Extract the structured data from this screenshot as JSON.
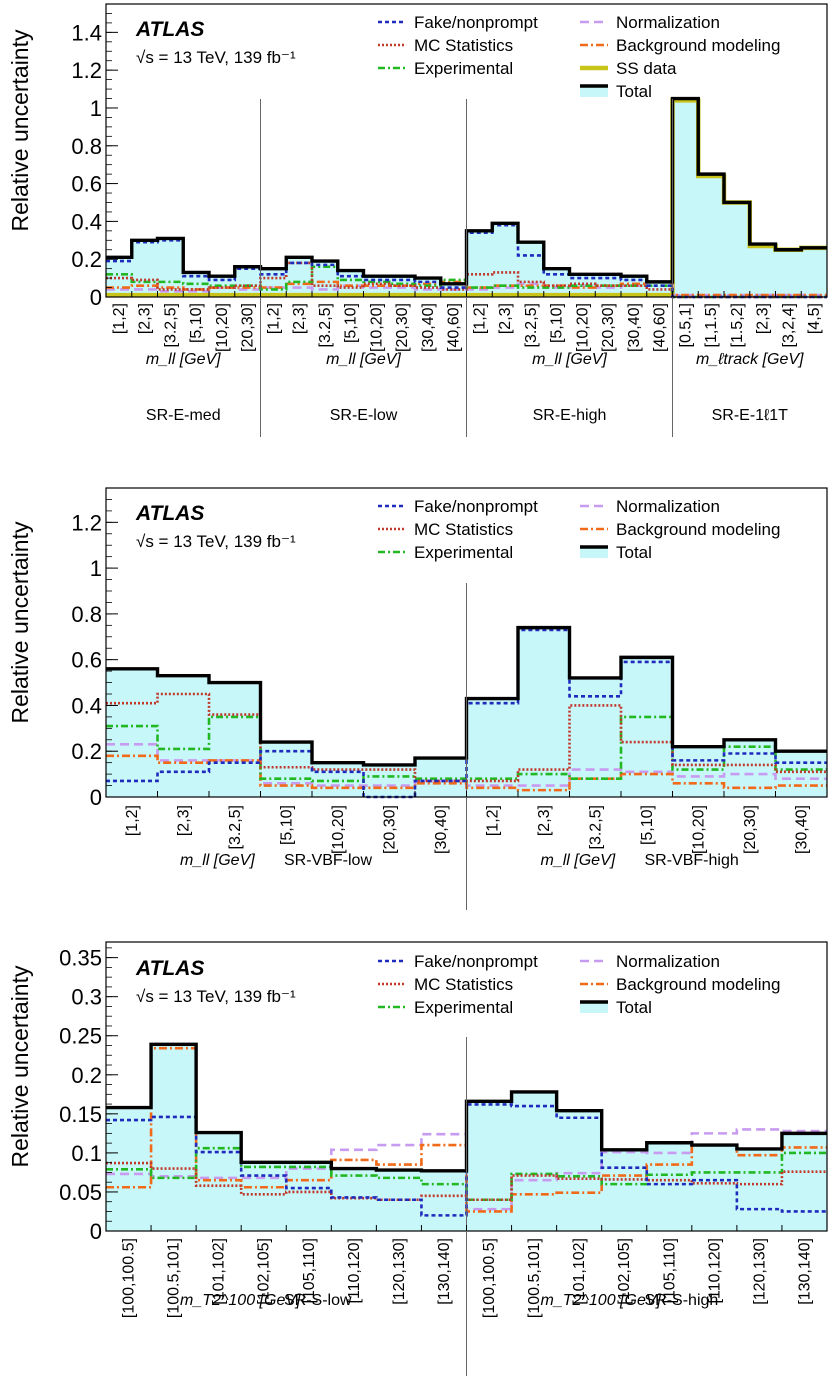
{
  "figure": {
    "ylabel": "Relative uncertainty"
  },
  "legend": {
    "fake": {
      "label": "Fake/nonprompt",
      "color": "#1f2bbd",
      "dash": "4,3"
    },
    "mcstat": {
      "label": "MC Statistics",
      "color": "#c0392b",
      "dash": "2,2"
    },
    "experimental": {
      "label": "Experimental",
      "color": "#22b822",
      "dash": "7,3,2,3"
    },
    "normalization": {
      "label": "Normalization",
      "color": "#c79bf0",
      "dash": "9,5"
    },
    "bkgmodel": {
      "label": "Background modeling",
      "color": "#f06a1a",
      "dash": "8,3,2,3"
    },
    "ssdata": {
      "label": "SS data",
      "color": "#c9c41a"
    },
    "total": {
      "label": "Total",
      "color": "#000000",
      "fill": "#c8f7fa"
    }
  },
  "atlas": {
    "label": "ATLAS",
    "energy": "√s = 13 TeV, 139 fb⁻¹"
  },
  "chart_data": [
    {
      "type": "step",
      "ylim": [
        0,
        1.55
      ],
      "yticks": [
        "0",
        "0.2",
        "0.4",
        "0.6",
        "0.8",
        "1",
        "1.2",
        "1.4"
      ],
      "show_ssdata": true,
      "regions": [
        {
          "name": "SR-E-med",
          "variable": "m_ll [GeV]",
          "categories": [
            "[1,2]",
            "[2,3]",
            "[3.2,5]",
            "[5,10]",
            "[10,20]",
            "[20,30]"
          ]
        },
        {
          "name": "SR-E-low",
          "variable": "m_ll [GeV]",
          "categories": [
            "[1,2]",
            "[2,3]",
            "[3.2,5]",
            "[5,10]",
            "[10,20]",
            "[20,30]",
            "[30,40]",
            "[40,60]"
          ]
        },
        {
          "name": "SR-E-high",
          "variable": "m_ll [GeV]",
          "categories": [
            "[1,2]",
            "[2,3]",
            "[3.2,5]",
            "[5,10]",
            "[10,20]",
            "[20,30]",
            "[30,40]",
            "[40,60]"
          ]
        },
        {
          "name": "SR-E-1ℓ1T",
          "variable": "m_ℓtrack [GeV]",
          "categories": [
            "[0.5,1]",
            "[1,1.5]",
            "[1.5,2]",
            "[2,3]",
            "[3,2,4]",
            "[4,5]"
          ]
        }
      ],
      "series": {
        "total": [
          0.21,
          0.3,
          0.31,
          0.13,
          0.11,
          0.16,
          0.15,
          0.21,
          0.19,
          0.14,
          0.11,
          0.11,
          0.1,
          0.07,
          0.35,
          0.39,
          0.29,
          0.15,
          0.12,
          0.12,
          0.11,
          0.08,
          1.05,
          0.65,
          0.5,
          0.28,
          0.25,
          0.26
        ],
        "fake": [
          0.19,
          0.29,
          0.3,
          0.11,
          0.09,
          0.15,
          0.12,
          0.18,
          0.17,
          0.11,
          0.09,
          0.09,
          0.08,
          0.05,
          0.34,
          0.38,
          0.22,
          0.12,
          0.1,
          0.1,
          0.09,
          0.06,
          0.0,
          0.0,
          0.0,
          0.0,
          0.0,
          0.0
        ],
        "mcstat": [
          0.1,
          0.09,
          0.04,
          0.04,
          0.05,
          0.06,
          0.1,
          0.18,
          0.06,
          0.05,
          0.07,
          0.06,
          0.05,
          0.04,
          0.12,
          0.13,
          0.08,
          0.06,
          0.07,
          0.06,
          0.06,
          0.04,
          0.0,
          0.0,
          0.0,
          0.0,
          0.0,
          0.0
        ],
        "experimental": [
          0.12,
          0.08,
          0.08,
          0.07,
          0.06,
          0.06,
          0.04,
          0.08,
          0.16,
          0.09,
          0.08,
          0.07,
          0.06,
          0.09,
          0.05,
          0.06,
          0.05,
          0.05,
          0.06,
          0.06,
          0.06,
          0.06,
          0.0,
          0.0,
          0.0,
          0.0,
          0.0,
          0.0
        ],
        "normalization": [
          0.04,
          0.04,
          0.03,
          0.03,
          0.05,
          0.04,
          0.05,
          0.05,
          0.04,
          0.06,
          0.05,
          0.05,
          0.04,
          0.04,
          0.04,
          0.05,
          0.07,
          0.05,
          0.06,
          0.05,
          0.06,
          0.08,
          0.01,
          0.01,
          0.01,
          0.01,
          0.01,
          0.01
        ],
        "bkgmodel": [
          0.05,
          0.06,
          0.05,
          0.04,
          0.05,
          0.05,
          0.05,
          0.07,
          0.08,
          0.06,
          0.06,
          0.06,
          0.07,
          0.08,
          0.05,
          0.06,
          0.06,
          0.06,
          0.05,
          0.06,
          0.07,
          0.08,
          0.01,
          0.01,
          0.01,
          0.01,
          0.01,
          0.01
        ],
        "ssdata": [
          0.01,
          0.01,
          0.01,
          0.01,
          0.01,
          0.01,
          0.01,
          0.01,
          0.01,
          0.01,
          0.01,
          0.01,
          0.01,
          0.01,
          0.01,
          0.01,
          0.01,
          0.01,
          0.01,
          0.01,
          0.01,
          0.01,
          1.04,
          0.64,
          0.5,
          0.27,
          0.25,
          0.26
        ]
      }
    },
    {
      "type": "step",
      "ylim": [
        0,
        1.35
      ],
      "yticks": [
        "0",
        "0.2",
        "0.4",
        "0.6",
        "0.8",
        "1",
        "1.2"
      ],
      "show_ssdata": false,
      "regions": [
        {
          "name": "SR-VBF-low",
          "variable": "m_ll [GeV]",
          "categories": [
            "[1,2]",
            "[2,3]",
            "[3.2,5]",
            "[5,10]",
            "[10,20]",
            "[20,30]",
            "[30,40]"
          ]
        },
        {
          "name": "SR-VBF-high",
          "variable": "m_ll [GeV]",
          "categories": [
            "[1,2]",
            "[2,3]",
            "[3.2,5]",
            "[5,10]",
            "[10,20]",
            "[20,30]",
            "[30,40]"
          ]
        }
      ],
      "series": {
        "total": [
          0.56,
          0.53,
          0.5,
          0.24,
          0.15,
          0.14,
          0.17,
          0.43,
          0.74,
          0.52,
          0.61,
          0.22,
          0.25,
          0.2
        ],
        "fake": [
          0.07,
          0.11,
          0.15,
          0.2,
          0.11,
          0.0,
          0.07,
          0.41,
          0.73,
          0.44,
          0.59,
          0.16,
          0.19,
          0.15
        ],
        "mcstat": [
          0.41,
          0.45,
          0.36,
          0.13,
          0.12,
          0.12,
          0.07,
          0.07,
          0.12,
          0.4,
          0.24,
          0.14,
          0.14,
          0.11
        ],
        "experimental": [
          0.31,
          0.21,
          0.35,
          0.08,
          0.07,
          0.09,
          0.08,
          0.08,
          0.1,
          0.08,
          0.35,
          0.12,
          0.22,
          0.12
        ],
        "normalization": [
          0.23,
          0.16,
          0.16,
          0.06,
          0.05,
          0.05,
          0.07,
          0.05,
          0.05,
          0.12,
          0.11,
          0.09,
          0.1,
          0.08
        ],
        "bkgmodel": [
          0.18,
          0.15,
          0.16,
          0.05,
          0.04,
          0.04,
          0.06,
          0.04,
          0.03,
          0.08,
          0.1,
          0.06,
          0.04,
          0.05
        ]
      }
    },
    {
      "type": "step",
      "ylim": [
        0,
        0.37
      ],
      "yticks": [
        "0",
        "0.05",
        "0.1",
        "0.15",
        "0.2",
        "0.25",
        "0.3",
        "0.35"
      ],
      "show_ssdata": false,
      "regions": [
        {
          "name": "SR-S-low",
          "variable": "m_T2^100 [GeV]",
          "categories": [
            "[100,100.5]",
            "[100.5,101]",
            "[101,102]",
            "[102,105]",
            "[105,110]",
            "[110,120]",
            "[120,130]",
            "[130,140]"
          ]
        },
        {
          "name": "SR-S-high",
          "variable": "m_T2^100 [GeV]",
          "categories": [
            "[100,100.5]",
            "[100.5,101]",
            "[101,102]",
            "[102,105]",
            "[105,110]",
            "[110,120]",
            "[120,130]",
            "[130,140]"
          ]
        }
      ],
      "series": {
        "total": [
          0.158,
          0.239,
          0.126,
          0.088,
          0.088,
          0.08,
          0.078,
          0.077,
          0.166,
          0.178,
          0.154,
          0.104,
          0.113,
          0.11,
          0.105,
          0.125
        ],
        "fake": [
          0.142,
          0.146,
          0.101,
          0.071,
          0.055,
          0.043,
          0.04,
          0.02,
          0.162,
          0.16,
          0.145,
          0.081,
          0.06,
          0.065,
          0.028,
          0.025
        ],
        "mcstat": [
          0.087,
          0.08,
          0.058,
          0.047,
          0.05,
          0.042,
          0.04,
          0.045,
          0.04,
          0.071,
          0.067,
          0.066,
          0.065,
          0.061,
          0.06,
          0.076
        ],
        "experimental": [
          0.079,
          0.068,
          0.106,
          0.082,
          0.082,
          0.071,
          0.068,
          0.06,
          0.04,
          0.073,
          0.07,
          0.06,
          0.072,
          0.075,
          0.075,
          0.1
        ],
        "normalization": [
          0.073,
          0.07,
          0.068,
          0.068,
          0.08,
          0.104,
          0.11,
          0.124,
          0.028,
          0.065,
          0.074,
          0.101,
          0.1,
          0.125,
          0.13,
          0.128
        ],
        "bkgmodel": [
          0.056,
          0.234,
          0.065,
          0.056,
          0.065,
          0.091,
          0.085,
          0.11,
          0.025,
          0.047,
          0.049,
          0.071,
          0.085,
          0.11,
          0.097,
          0.107
        ]
      }
    }
  ]
}
